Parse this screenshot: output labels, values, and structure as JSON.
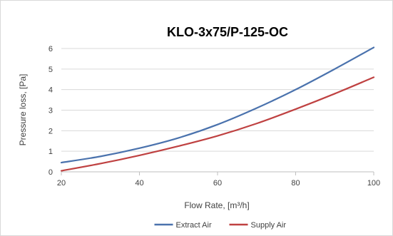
{
  "chart_data": {
    "type": "line",
    "title": "KLO-3x75/P-125-OC",
    "xlabel": "Flow Rate, [m³/h]",
    "ylabel": "Pressure loss, [Pa]",
    "xlim": [
      20,
      100
    ],
    "ylim": [
      0,
      6
    ],
    "xticks": [
      20,
      40,
      60,
      80,
      100
    ],
    "yticks": [
      0,
      1,
      2,
      3,
      4,
      5,
      6
    ],
    "grid": "horizontal",
    "legend_position": "bottom",
    "x": [
      20,
      30,
      40,
      50,
      60,
      70,
      80,
      90,
      100
    ],
    "series": [
      {
        "name": "Extract Air",
        "color": "#4a72ad",
        "values": [
          0.45,
          0.75,
          1.15,
          1.65,
          2.3,
          3.1,
          4.0,
          5.0,
          6.05
        ]
      },
      {
        "name": "Supply Air",
        "color": "#bf4141",
        "values": [
          0.05,
          0.4,
          0.8,
          1.25,
          1.75,
          2.35,
          3.05,
          3.8,
          4.6
        ]
      }
    ]
  }
}
